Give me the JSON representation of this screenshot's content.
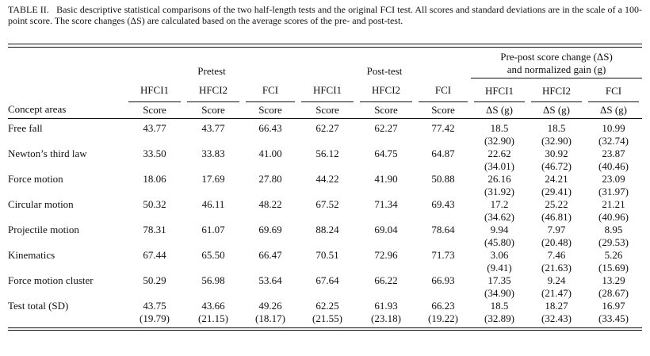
{
  "caption": {
    "label": "TABLE II.",
    "text": "Basic descriptive statistical comparisons of the two half-length tests and the original FCI test. All scores and standard deviations are in the scale of a 100-point score. The score changes (ΔS) are calculated based on the average scores of the pre- and post-test."
  },
  "table": {
    "groups": {
      "pretest": "Pretest",
      "posttest": "Post-test",
      "change_line1": "Pre-post score change (ΔS)",
      "change_line2": "and normalized gain (g)"
    },
    "test_names": {
      "pre": [
        "HFCI1",
        "HFCI2",
        "FCI"
      ],
      "post": [
        "HFCI1",
        "HFCI2",
        "FCI"
      ],
      "change": [
        "HFCI1",
        "HFCI2",
        "FCI"
      ]
    },
    "concept_header": "Concept areas",
    "score_label": "Score",
    "change_label": "ΔS (g)",
    "rows": [
      {
        "concept": "Free fall",
        "pre": [
          "43.77",
          "43.77",
          "66.43"
        ],
        "post": [
          "62.27",
          "62.27",
          "77.42"
        ],
        "change": [
          [
            "18.5",
            "(32.90)"
          ],
          [
            "18.5",
            "(32.90)"
          ],
          [
            "10.99",
            "(32.74)"
          ]
        ]
      },
      {
        "concept": "Newton’s third law",
        "pre": [
          "33.50",
          "33.83",
          "41.00"
        ],
        "post": [
          "56.12",
          "64.75",
          "64.87"
        ],
        "change": [
          [
            "22.62",
            "(34.01)"
          ],
          [
            "30.92",
            "(46.72)"
          ],
          [
            "23.87",
            "(40.46)"
          ]
        ]
      },
      {
        "concept": "Force motion",
        "pre": [
          "18.06",
          "17.69",
          "27.80"
        ],
        "post": [
          "44.22",
          "41.90",
          "50.88"
        ],
        "change": [
          [
            "26.16",
            "(31.92)"
          ],
          [
            "24.21",
            "(29.41)"
          ],
          [
            "23.09",
            "(31.97)"
          ]
        ]
      },
      {
        "concept": "Circular motion",
        "pre": [
          "50.32",
          "46.11",
          "48.22"
        ],
        "post": [
          "67.52",
          "71.34",
          "69.43"
        ],
        "change": [
          [
            "17.2",
            "(34.62)"
          ],
          [
            "25.22",
            "(46.81)"
          ],
          [
            "21.21",
            "(40.96)"
          ]
        ]
      },
      {
        "concept": "Projectile motion",
        "pre": [
          "78.31",
          "61.07",
          "69.69"
        ],
        "post": [
          "88.24",
          "69.04",
          "78.64"
        ],
        "change": [
          [
            "9.94",
            "(45.80)"
          ],
          [
            "7.97",
            "(20.48)"
          ],
          [
            "8.95",
            "(29.53)"
          ]
        ]
      },
      {
        "concept": "Kinematics",
        "pre": [
          "67.44",
          "65.50",
          "66.47"
        ],
        "post": [
          "70.51",
          "72.96",
          "71.73"
        ],
        "change": [
          [
            "3.06",
            "(9.41)"
          ],
          [
            "7.46",
            "(21.63)"
          ],
          [
            "5.26",
            "(15.69)"
          ]
        ]
      },
      {
        "concept": "Force motion cluster",
        "pre": [
          "50.29",
          "56.98",
          "53.64"
        ],
        "post": [
          "67.64",
          "66.22",
          "66.93"
        ],
        "change": [
          [
            "17.35",
            "(34.90)"
          ],
          [
            "9.24",
            "(21.47)"
          ],
          [
            "13.29",
            "(28.67)"
          ]
        ]
      }
    ],
    "total": {
      "concept": "Test total (SD)",
      "pre": [
        [
          "43.75",
          "(19.79)"
        ],
        [
          "43.66",
          "(21.15)"
        ],
        [
          "49.26",
          "(18.17)"
        ]
      ],
      "post": [
        [
          "62.25",
          "(21.55)"
        ],
        [
          "61.93",
          "(23.18)"
        ],
        [
          "66.23",
          "(19.22)"
        ]
      ],
      "change": [
        [
          "18.5",
          "(32.89)"
        ],
        [
          "18.27",
          "(32.43)"
        ],
        [
          "16.97",
          "(33.45)"
        ]
      ]
    }
  }
}
